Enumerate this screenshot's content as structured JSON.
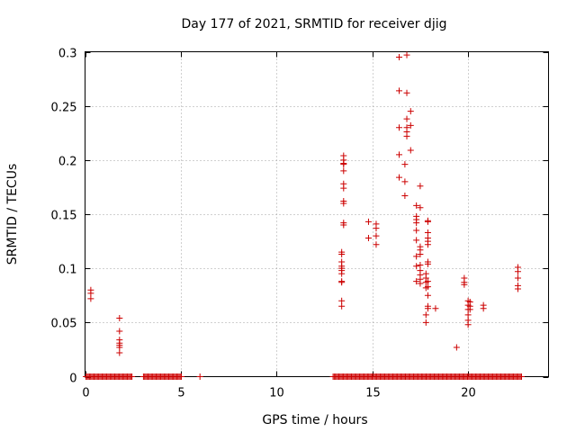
{
  "chart_data": {
    "type": "scatter",
    "title": "Day 177 of 2021, SRMTID for receiver djig",
    "xlabel": "GPS time / hours",
    "ylabel": "SRMTID / TECUs",
    "xlim": [
      0,
      24.2
    ],
    "ylim": [
      0,
      0.3
    ],
    "xticks": [
      0,
      5,
      10,
      15,
      20
    ],
    "yticks": [
      0,
      0.05,
      0.1,
      0.15,
      0.2,
      0.25,
      0.3
    ],
    "xtick_labels": [
      "0",
      "5",
      "10",
      "15",
      "20"
    ],
    "ytick_labels": [
      "0",
      "0.05",
      "0.1",
      "0.15",
      "0.2",
      "0.25",
      "0.3"
    ],
    "grid": true,
    "marker": "+",
    "color": "#cc0000",
    "series": [
      {
        "name": "SRMTID",
        "points": [
          [
            0.3,
            0.08
          ],
          [
            0.3,
            0.077
          ],
          [
            0.3,
            0.072
          ],
          [
            1.8,
            0.054
          ],
          [
            1.8,
            0.042
          ],
          [
            1.8,
            0.034
          ],
          [
            1.8,
            0.031
          ],
          [
            1.8,
            0.029
          ],
          [
            1.8,
            0.027
          ],
          [
            1.8,
            0.022
          ],
          [
            13.4,
            0.115
          ],
          [
            13.4,
            0.113
          ],
          [
            13.4,
            0.106
          ],
          [
            13.4,
            0.102
          ],
          [
            13.4,
            0.1
          ],
          [
            13.4,
            0.098
          ],
          [
            13.4,
            0.095
          ],
          [
            13.4,
            0.088
          ],
          [
            13.4,
            0.087
          ],
          [
            13.4,
            0.07
          ],
          [
            13.4,
            0.065
          ],
          [
            13.5,
            0.204
          ],
          [
            13.5,
            0.2
          ],
          [
            13.5,
            0.197
          ],
          [
            13.5,
            0.196
          ],
          [
            13.5,
            0.19
          ],
          [
            13.5,
            0.178
          ],
          [
            13.5,
            0.174
          ],
          [
            13.5,
            0.162
          ],
          [
            13.5,
            0.16
          ],
          [
            13.5,
            0.142
          ],
          [
            13.5,
            0.14
          ],
          [
            14.8,
            0.143
          ],
          [
            14.8,
            0.128
          ],
          [
            15.2,
            0.141
          ],
          [
            15.2,
            0.137
          ],
          [
            15.2,
            0.13
          ],
          [
            15.2,
            0.122
          ],
          [
            16.4,
            0.295
          ],
          [
            16.4,
            0.264
          ],
          [
            16.4,
            0.23
          ],
          [
            16.4,
            0.205
          ],
          [
            16.4,
            0.184
          ],
          [
            16.7,
            0.196
          ],
          [
            16.7,
            0.18
          ],
          [
            16.7,
            0.167
          ],
          [
            16.8,
            0.297
          ],
          [
            16.8,
            0.262
          ],
          [
            16.8,
            0.238
          ],
          [
            16.8,
            0.23
          ],
          [
            16.8,
            0.226
          ],
          [
            16.8,
            0.222
          ],
          [
            17.0,
            0.245
          ],
          [
            17.0,
            0.232
          ],
          [
            17.0,
            0.209
          ],
          [
            17.3,
            0.158
          ],
          [
            17.3,
            0.148
          ],
          [
            17.3,
            0.145
          ],
          [
            17.3,
            0.142
          ],
          [
            17.3,
            0.135
          ],
          [
            17.3,
            0.126
          ],
          [
            17.3,
            0.111
          ],
          [
            17.3,
            0.102
          ],
          [
            17.3,
            0.088
          ],
          [
            17.5,
            0.176
          ],
          [
            17.5,
            0.156
          ],
          [
            17.5,
            0.12
          ],
          [
            17.5,
            0.117
          ],
          [
            17.5,
            0.113
          ],
          [
            17.5,
            0.103
          ],
          [
            17.5,
            0.098
          ],
          [
            17.5,
            0.094
          ],
          [
            17.5,
            0.09
          ],
          [
            17.5,
            0.086
          ],
          [
            17.8,
            0.095
          ],
          [
            17.8,
            0.091
          ],
          [
            17.8,
            0.087
          ],
          [
            17.8,
            0.082
          ],
          [
            17.8,
            0.057
          ],
          [
            17.8,
            0.05
          ],
          [
            17.9,
            0.144
          ],
          [
            17.9,
            0.143
          ],
          [
            17.9,
            0.133
          ],
          [
            17.9,
            0.128
          ],
          [
            17.9,
            0.125
          ],
          [
            17.9,
            0.122
          ],
          [
            17.9,
            0.106
          ],
          [
            17.9,
            0.104
          ],
          [
            17.9,
            0.088
          ],
          [
            17.9,
            0.083
          ],
          [
            17.9,
            0.075
          ],
          [
            17.9,
            0.065
          ],
          [
            17.9,
            0.063
          ],
          [
            18.3,
            0.063
          ],
          [
            19.4,
            0.027
          ],
          [
            19.8,
            0.091
          ],
          [
            19.8,
            0.087
          ],
          [
            19.8,
            0.085
          ],
          [
            20.0,
            0.07
          ],
          [
            20.0,
            0.066
          ],
          [
            20.0,
            0.062
          ],
          [
            20.0,
            0.057
          ],
          [
            20.0,
            0.052
          ],
          [
            20.0,
            0.048
          ],
          [
            20.1,
            0.069
          ],
          [
            20.1,
            0.065
          ],
          [
            20.1,
            0.062
          ],
          [
            20.8,
            0.066
          ],
          [
            20.8,
            0.063
          ],
          [
            22.6,
            0.101
          ],
          [
            22.6,
            0.097
          ],
          [
            22.6,
            0.091
          ],
          [
            22.6,
            0.084
          ],
          [
            22.6,
            0.081
          ]
        ],
        "zero_ranges": [
          [
            0.05,
            2.45
          ],
          [
            3.05,
            5.05
          ],
          [
            6.0,
            6.0
          ],
          [
            12.95,
            22.8
          ]
        ]
      }
    ]
  }
}
